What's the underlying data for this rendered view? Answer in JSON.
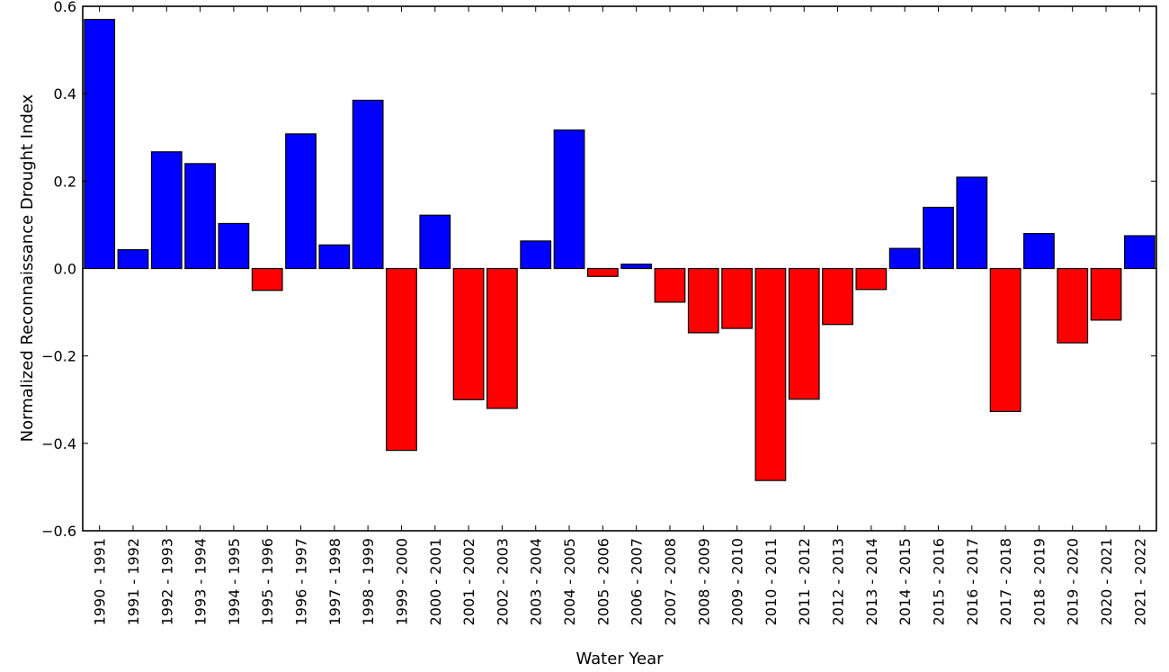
{
  "chart_data": {
    "type": "bar",
    "title": "",
    "xlabel": "Water Year",
    "ylabel": "Normalized Reconnaissance Drought Index",
    "ylim": [
      -0.6,
      0.6
    ],
    "yticks": [
      "0.6",
      "0.4",
      "0.2",
      "0.0",
      "−0.2",
      "−0.4",
      "−0.6"
    ],
    "ytick_values": [
      0.6,
      0.4,
      0.2,
      0.0,
      -0.2,
      -0.4,
      -0.6
    ],
    "grid": false,
    "legend": null,
    "colors": {
      "positive": "#0000ff",
      "negative": "#ff0000",
      "edge": "#000000"
    },
    "categories": [
      "1990 - 1991",
      "1991 - 1992",
      "1992 - 1993",
      "1993 - 1994",
      "1994 - 1995",
      "1995 - 1996",
      "1996 - 1997",
      "1997 - 1998",
      "1998 - 1999",
      "1999 - 2000",
      "2000 - 2001",
      "2001 - 2002",
      "2002 - 2003",
      "2003 - 2004",
      "2004 - 2005",
      "2005 - 2006",
      "2006 - 2007",
      "2007 - 2008",
      "2008 - 2009",
      "2009 - 2010",
      "2010 - 2011",
      "2011 - 2012",
      "2012 - 2013",
      "2013 - 2014",
      "2014 - 2015",
      "2015 - 2016",
      "2016 - 2017",
      "2017 - 2018",
      "2018 - 2019",
      "2019 - 2020",
      "2020 - 2021",
      "2021 - 2022"
    ],
    "values": [
      0.57,
      0.043,
      0.267,
      0.24,
      0.103,
      -0.05,
      0.308,
      0.054,
      0.385,
      -0.416,
      0.122,
      -0.3,
      -0.32,
      0.063,
      0.317,
      -0.018,
      0.01,
      -0.077,
      -0.147,
      -0.137,
      -0.485,
      -0.299,
      -0.128,
      -0.048,
      0.046,
      0.14,
      0.209,
      -0.327,
      0.08,
      -0.17,
      -0.118,
      0.075
    ]
  }
}
